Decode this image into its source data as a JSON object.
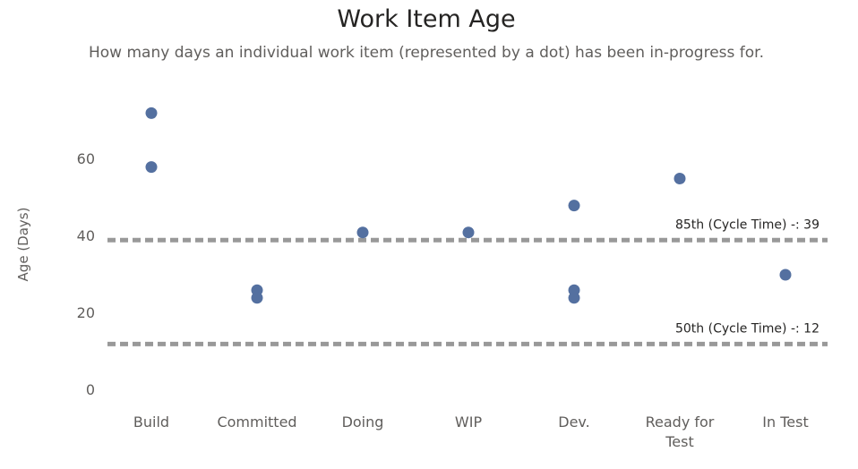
{
  "chart_data": {
    "type": "scatter",
    "title": "Work Item Age",
    "subtitle": "How many days an individual work item (represented by a dot) has been in-progress for.",
    "xlabel": "",
    "ylabel": "Age (Days)",
    "categories": [
      [
        "Build"
      ],
      [
        "Committed"
      ],
      [
        "Doing"
      ],
      [
        "WIP"
      ],
      [
        "Dev."
      ],
      [
        "Ready for",
        "Test"
      ],
      [
        "In Test"
      ]
    ],
    "yticks": [
      0,
      20,
      40,
      60
    ],
    "ylim": [
      0,
      76
    ],
    "grid": false,
    "series": [
      {
        "color": "#5470a0",
        "points": [
          {
            "x": "Build",
            "y": 72
          },
          {
            "x": "Build",
            "y": 58
          },
          {
            "x": "Committed",
            "y": 26
          },
          {
            "x": "Committed",
            "y": 24
          },
          {
            "x": "Doing",
            "y": 41
          },
          {
            "x": "WIP",
            "y": 41
          },
          {
            "x": "Dev.",
            "y": 48
          },
          {
            "x": "Dev.",
            "y": 26
          },
          {
            "x": "Dev.",
            "y": 24
          },
          {
            "x": "Ready for Test",
            "y": 55
          },
          {
            "x": "In Test",
            "y": 30
          }
        ]
      }
    ],
    "reference_lines": [
      {
        "label": "85th (Cycle Time) -: 39",
        "value": 39,
        "color": "#999999"
      },
      {
        "label": "50th (Cycle Time) -: 12",
        "value": 12,
        "color": "#999999"
      }
    ]
  }
}
